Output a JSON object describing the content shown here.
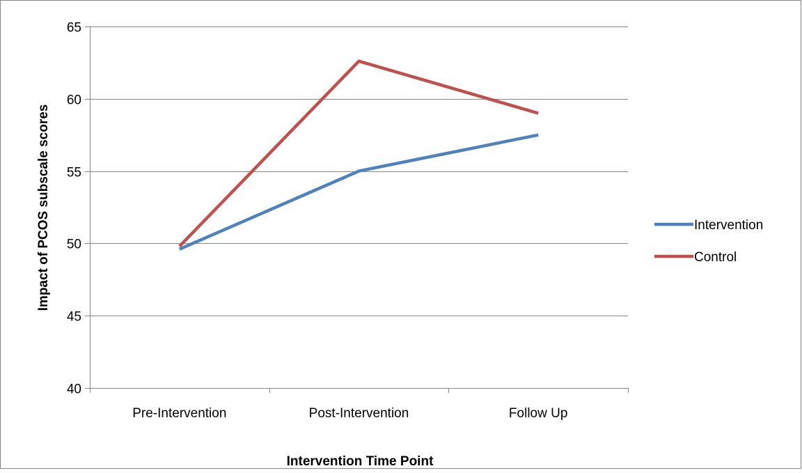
{
  "chart_data": {
    "type": "line",
    "title": "",
    "xlabel": "Intervention Time Point",
    "ylabel": "Impact of PCOS subscale scores",
    "categories": [
      "Pre-Intervention",
      "Post-Intervention",
      "Follow Up"
    ],
    "series": [
      {
        "name": "Intervention",
        "values": [
          49.6,
          55.0,
          57.5
        ],
        "color": "#4F81BD"
      },
      {
        "name": "Control",
        "values": [
          49.8,
          62.6,
          59.0
        ],
        "color": "#C0504D"
      }
    ],
    "ylim": [
      40,
      65
    ],
    "yticks": [
      "40",
      "45",
      "50",
      "55",
      "60",
      "65"
    ],
    "grid": true,
    "legend": "right"
  }
}
